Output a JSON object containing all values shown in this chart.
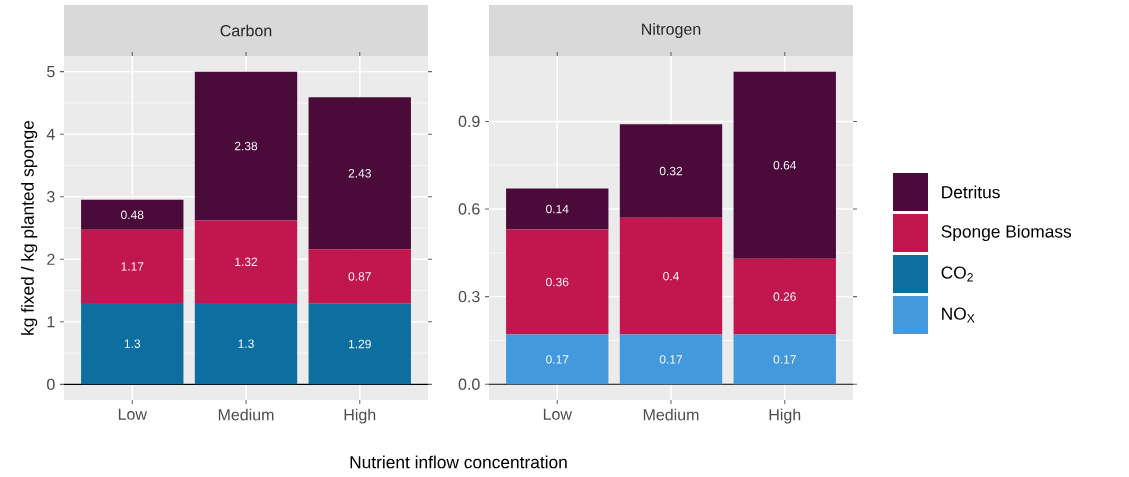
{
  "chart_data": [
    {
      "type": "bar",
      "title": "Carbon",
      "ylabel": "kg fixed / kg planted sponge",
      "xlabel": "Nutrient inflow concentration",
      "categories": [
        "Low",
        "Medium",
        "High"
      ],
      "stacked": true,
      "data_labels": true,
      "grid": true,
      "legend": "right",
      "ylim": [
        -0.25,
        5.25
      ],
      "yticks": [
        0,
        1,
        2,
        3,
        4,
        5
      ],
      "ref_lines": [
        {
          "axis": "y",
          "value": 0,
          "color": "#000000"
        }
      ],
      "series": [
        {
          "name": "CO$_{2}$",
          "color": "#0c6fa0",
          "values": [
            1.3,
            1.3,
            1.29
          ]
        },
        {
          "name": "Sponge Biomass",
          "color": "#c1174e",
          "values": [
            1.17,
            1.32,
            0.87
          ]
        },
        {
          "name": "Detritus",
          "color": "#4a0a3a",
          "values": [
            0.48,
            2.38,
            2.43
          ]
        }
      ]
    },
    {
      "type": "bar",
      "title": "Nitrogen",
      "categories": [
        "Low",
        "Medium",
        "High"
      ],
      "stacked": true,
      "data_labels": true,
      "grid": true,
      "legend": "right",
      "ylim": [
        -0.054,
        1.124
      ],
      "yticks": [
        {
          "value": 0,
          "label": "0.0"
        },
        0.3,
        0.6,
        0.9
      ],
      "ref_lines": [
        {
          "axis": "y",
          "value": 0,
          "color": "#000000"
        }
      ],
      "series": [
        {
          "name": "NO$_{X}$",
          "color": "#4499dd",
          "values": [
            0.17,
            0.17,
            0.17
          ]
        },
        {
          "name": "Sponge Biomass",
          "color": "#c1174e",
          "values": [
            0.36,
            0.4,
            0.26
          ]
        },
        {
          "name": "Detritus",
          "color": "#4a0a3a",
          "values": [
            0.14,
            0.32,
            0.64
          ]
        }
      ]
    }
  ]
}
